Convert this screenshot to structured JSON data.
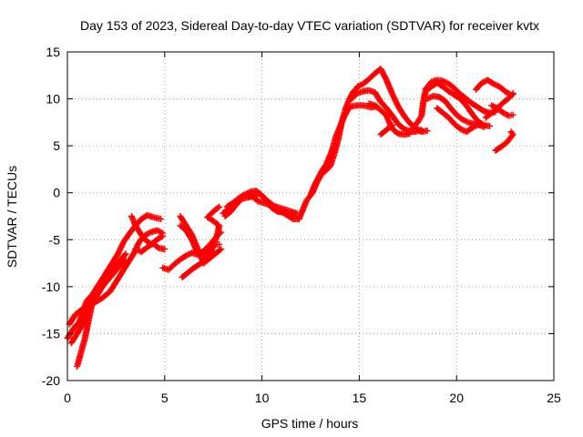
{
  "chart_data": {
    "type": "scatter",
    "title": "Day 153 of 2023, Sidereal Day-to-day VTEC variation (SDTVAR) for receiver kvtx",
    "xlabel": "GPS time / hours",
    "ylabel": "SDTVAR / TECUs",
    "xlim": [
      0,
      25
    ],
    "ylim": [
      -20,
      15
    ],
    "xticks": [
      0,
      5,
      10,
      15,
      20,
      25
    ],
    "yticks": [
      -20,
      -15,
      -10,
      -5,
      0,
      5,
      10,
      15
    ],
    "grid": true,
    "marker": "plus",
    "color": "#ff0000",
    "series": [
      {
        "values": [
          [
            0.0,
            -15.5
          ],
          [
            0.3,
            -14.5
          ],
          [
            0.6,
            -13.8
          ],
          [
            1.0,
            -11.5
          ],
          [
            1.3,
            -10.8
          ],
          [
            1.6,
            -9.8
          ],
          [
            2.0,
            -8.5
          ],
          [
            2.3,
            -7.5
          ],
          [
            2.6,
            -6.5
          ],
          [
            2.9,
            -5.2
          ],
          [
            3.2,
            -4.3
          ],
          [
            3.5,
            -3.5
          ],
          [
            3.8,
            -2.8
          ],
          [
            4.1,
            -2.4
          ],
          [
            4.4,
            -2.6
          ],
          [
            4.8,
            -2.8
          ]
        ]
      },
      {
        "values": [
          [
            0.1,
            -14.0
          ],
          [
            0.4,
            -13.0
          ],
          [
            0.7,
            -12.5
          ],
          [
            1.0,
            -12.0
          ],
          [
            1.4,
            -11.7
          ],
          [
            1.8,
            -11.2
          ],
          [
            2.2,
            -10.5
          ],
          [
            2.5,
            -9.5
          ],
          [
            2.8,
            -8.5
          ],
          [
            3.1,
            -7.5
          ],
          [
            3.4,
            -6.5
          ],
          [
            3.7,
            -5.2
          ],
          [
            4.0,
            -4.5
          ],
          [
            4.3,
            -4.2
          ],
          [
            4.6,
            -4.0
          ],
          [
            4.9,
            -4.3
          ]
        ]
      },
      {
        "values": [
          [
            0.5,
            -18.5
          ],
          [
            0.7,
            -17.0
          ],
          [
            0.9,
            -15.5
          ],
          [
            1.1,
            -13.5
          ],
          [
            1.3,
            -11.5
          ],
          [
            1.6,
            -10.5
          ],
          [
            2.0,
            -9.5
          ],
          [
            2.4,
            -8.5
          ],
          [
            2.7,
            -7.8
          ],
          [
            3.0,
            -7.2
          ]
        ]
      },
      {
        "values": [
          [
            0.2,
            -16.0
          ],
          [
            0.5,
            -15.0
          ],
          [
            0.8,
            -14.0
          ],
          [
            1.0,
            -13.0
          ],
          [
            1.2,
            -12.0
          ],
          [
            1.5,
            -11.0
          ],
          [
            1.8,
            -10.0
          ],
          [
            2.1,
            -9.0
          ],
          [
            2.4,
            -8.0
          ],
          [
            2.7,
            -7.2
          ],
          [
            3.0,
            -6.5
          ]
        ]
      },
      {
        "values": [
          [
            3.3,
            -2.5
          ],
          [
            3.5,
            -3.5
          ],
          [
            3.8,
            -4.5
          ],
          [
            4.0,
            -5.0
          ],
          [
            4.3,
            -5.5
          ],
          [
            4.6,
            -5.0
          ],
          [
            4.9,
            -4.6
          ]
        ]
      },
      {
        "values": [
          [
            3.5,
            -6.0
          ],
          [
            3.8,
            -6.3
          ],
          [
            4.1,
            -5.8
          ],
          [
            4.4,
            -5.4
          ],
          [
            4.7,
            -5.9
          ],
          [
            5.0,
            -6.0
          ]
        ]
      },
      {
        "values": [
          [
            4.9,
            -8.0
          ],
          [
            5.2,
            -8.2
          ],
          [
            5.5,
            -7.6
          ],
          [
            5.8,
            -7.1
          ],
          [
            6.1,
            -6.7
          ],
          [
            6.4,
            -6.4
          ],
          [
            6.7,
            -6.6
          ],
          [
            7.0,
            -6.2
          ],
          [
            7.3,
            -5.6
          ],
          [
            7.7,
            -4.6
          ],
          [
            7.9,
            -4.2
          ]
        ]
      },
      {
        "values": [
          [
            5.8,
            -2.5
          ],
          [
            6.1,
            -3.5
          ],
          [
            6.4,
            -4.5
          ],
          [
            6.7,
            -6.0
          ],
          [
            7.0,
            -7.5
          ],
          [
            7.3,
            -7.0
          ],
          [
            7.6,
            -6.5
          ],
          [
            7.9,
            -6.0
          ]
        ]
      },
      {
        "values": [
          [
            5.8,
            -3.5
          ],
          [
            6.1,
            -4.0
          ],
          [
            6.4,
            -5.0
          ],
          [
            6.7,
            -6.5
          ],
          [
            7.0,
            -7.0
          ],
          [
            7.3,
            -6.0
          ],
          [
            7.6,
            -5.5
          ],
          [
            7.8,
            -5.5
          ]
        ]
      },
      {
        "values": [
          [
            5.9,
            -9.0
          ],
          [
            6.2,
            -8.5
          ],
          [
            6.5,
            -8.0
          ],
          [
            6.8,
            -7.6
          ],
          [
            7.1,
            -7.2
          ],
          [
            7.4,
            -6.2
          ],
          [
            7.7,
            -4.5
          ],
          [
            7.8,
            -3.5
          ],
          [
            7.5,
            -3.0
          ],
          [
            7.2,
            -2.6
          ],
          [
            7.5,
            -2.0
          ],
          [
            7.8,
            -1.5
          ]
        ]
      },
      {
        "values": [
          [
            8.1,
            -2.5
          ],
          [
            8.4,
            -2.0
          ],
          [
            8.7,
            -1.2
          ],
          [
            9.0,
            -0.6
          ],
          [
            9.3,
            -0.5
          ],
          [
            9.6,
            -0.3
          ],
          [
            9.9,
            -0.1
          ],
          [
            10.2,
            -0.8
          ],
          [
            10.5,
            -1.6
          ],
          [
            10.8,
            -2.0
          ],
          [
            11.1,
            -2.1
          ],
          [
            11.4,
            -2.3
          ],
          [
            11.7,
            -2.5
          ]
        ]
      },
      {
        "values": [
          [
            8.2,
            -1.5
          ],
          [
            8.5,
            -1.1
          ],
          [
            8.8,
            -0.6
          ],
          [
            9.1,
            -0.2
          ],
          [
            9.4,
            0.1
          ],
          [
            9.7,
            0.2
          ],
          [
            10.0,
            -0.3
          ],
          [
            10.3,
            -0.9
          ],
          [
            10.6,
            -1.4
          ],
          [
            10.9,
            -1.6
          ],
          [
            11.2,
            -1.8
          ],
          [
            11.5,
            -2.0
          ],
          [
            11.8,
            -2.2
          ]
        ]
      },
      {
        "values": [
          [
            8.0,
            -2.2
          ],
          [
            8.3,
            -1.6
          ],
          [
            8.6,
            -1.0
          ],
          [
            8.9,
            -0.5
          ],
          [
            9.2,
            -0.3
          ],
          [
            9.5,
            -0.4
          ],
          [
            9.8,
            -0.9
          ],
          [
            10.1,
            -1.1
          ],
          [
            10.4,
            -1.3
          ],
          [
            10.7,
            -1.6
          ],
          [
            11.0,
            -2.0
          ],
          [
            11.3,
            -2.4
          ],
          [
            11.6,
            -2.8
          ],
          [
            11.9,
            -2.8
          ]
        ]
      },
      {
        "values": [
          [
            11.9,
            -2.8
          ],
          [
            12.1,
            -1.8
          ],
          [
            12.3,
            -0.8
          ],
          [
            12.6,
            0.0
          ],
          [
            12.8,
            1.0
          ],
          [
            13.0,
            1.8
          ],
          [
            13.2,
            2.2
          ],
          [
            13.5,
            2.8
          ],
          [
            13.7,
            4.0
          ],
          [
            13.9,
            5.5
          ],
          [
            14.1,
            7.5
          ],
          [
            14.3,
            9.0
          ],
          [
            14.5,
            10.0
          ],
          [
            14.7,
            10.8
          ],
          [
            14.9,
            11.2
          ]
        ]
      },
      {
        "values": [
          [
            12.5,
            -0.2
          ],
          [
            12.7,
            0.8
          ],
          [
            12.9,
            1.6
          ],
          [
            13.1,
            2.4
          ],
          [
            13.3,
            3.0
          ],
          [
            13.6,
            4.5
          ],
          [
            13.8,
            6.0
          ],
          [
            14.0,
            7.0
          ],
          [
            14.2,
            8.0
          ],
          [
            14.4,
            8.8
          ],
          [
            14.6,
            9.2
          ],
          [
            14.9,
            9.3
          ],
          [
            15.2,
            9.3
          ],
          [
            15.6,
            9.1
          ],
          [
            15.9,
            9.2
          ]
        ]
      },
      {
        "values": [
          [
            14.9,
            11.3
          ],
          [
            15.2,
            11.6
          ],
          [
            15.5,
            12.1
          ],
          [
            15.8,
            12.7
          ],
          [
            16.1,
            13.2
          ],
          [
            16.4,
            12.0
          ],
          [
            16.7,
            10.5
          ],
          [
            17.0,
            9.2
          ],
          [
            17.3,
            8.2
          ],
          [
            17.6,
            7.4
          ],
          [
            17.9,
            6.9
          ],
          [
            18.2,
            6.5
          ],
          [
            18.5,
            6.6
          ]
        ]
      },
      {
        "values": [
          [
            14.6,
            10.0
          ],
          [
            14.9,
            10.6
          ],
          [
            15.2,
            10.8
          ],
          [
            15.5,
            10.9
          ],
          [
            15.8,
            10.7
          ],
          [
            16.1,
            9.7
          ],
          [
            16.4,
            9.0
          ],
          [
            16.7,
            8.2
          ],
          [
            17.0,
            7.3
          ],
          [
            17.3,
            6.8
          ],
          [
            17.6,
            6.5
          ],
          [
            17.9,
            6.5
          ],
          [
            18.2,
            6.7
          ]
        ]
      },
      {
        "values": [
          [
            15.5,
            9.5
          ],
          [
            15.8,
            9.3
          ],
          [
            16.1,
            8.8
          ],
          [
            16.4,
            8.2
          ],
          [
            16.6,
            7.2
          ],
          [
            16.8,
            6.6
          ],
          [
            17.0,
            6.3
          ],
          [
            17.3,
            6.2
          ],
          [
            17.6,
            6.3
          ]
        ]
      },
      {
        "values": [
          [
            16.1,
            6.2
          ],
          [
            16.4,
            6.7
          ],
          [
            16.7,
            7.2
          ]
        ]
      },
      {
        "values": [
          [
            17.7,
            6.8
          ],
          [
            18.0,
            7.5
          ],
          [
            18.2,
            8.2
          ],
          [
            18.3,
            9.8
          ],
          [
            18.4,
            10.8
          ],
          [
            18.7,
            11.3
          ],
          [
            19.0,
            11.7
          ],
          [
            19.3,
            11.3
          ],
          [
            19.6,
            10.8
          ],
          [
            19.9,
            10.4
          ],
          [
            20.2,
            10.0
          ],
          [
            20.5,
            9.3
          ],
          [
            20.8,
            8.4
          ],
          [
            21.1,
            7.6
          ],
          [
            21.4,
            7.2
          ],
          [
            21.7,
            7.1
          ]
        ]
      },
      {
        "values": [
          [
            18.4,
            11.0
          ],
          [
            18.7,
            11.8
          ],
          [
            19.0,
            12.0
          ],
          [
            19.3,
            11.9
          ],
          [
            19.6,
            11.6
          ],
          [
            19.9,
            11.1
          ],
          [
            20.2,
            10.5
          ],
          [
            20.5,
            10.0
          ],
          [
            20.8,
            9.5
          ],
          [
            21.1,
            9.1
          ],
          [
            21.4,
            8.7
          ],
          [
            21.7,
            8.5
          ],
          [
            22.0,
            8.6
          ]
        ]
      },
      {
        "values": [
          [
            18.5,
            10.0
          ],
          [
            18.8,
            10.3
          ],
          [
            19.1,
            10.2
          ],
          [
            19.4,
            9.8
          ],
          [
            19.7,
            9.0
          ],
          [
            20.0,
            8.3
          ],
          [
            20.3,
            7.8
          ],
          [
            20.6,
            7.5
          ],
          [
            20.9,
            7.3
          ],
          [
            21.2,
            7.2
          ]
        ]
      },
      {
        "values": [
          [
            19.0,
            9.0
          ],
          [
            19.3,
            8.5
          ],
          [
            19.6,
            8.0
          ],
          [
            19.9,
            7.3
          ],
          [
            20.2,
            6.8
          ],
          [
            20.5,
            6.5
          ],
          [
            20.8,
            6.9
          ],
          [
            21.1,
            7.3
          ],
          [
            21.4,
            7.0
          ]
        ]
      },
      {
        "values": [
          [
            21.0,
            11.0
          ],
          [
            21.3,
            11.7
          ],
          [
            21.6,
            12.0
          ],
          [
            21.9,
            11.6
          ],
          [
            22.2,
            11.3
          ],
          [
            22.5,
            10.8
          ],
          [
            22.8,
            10.4
          ],
          [
            22.9,
            10.6
          ]
        ]
      },
      {
        "values": [
          [
            21.5,
            8.0
          ],
          [
            21.8,
            8.5
          ],
          [
            22.1,
            9.0
          ],
          [
            22.4,
            9.6
          ],
          [
            22.7,
            10.1
          ],
          [
            22.9,
            10.5
          ]
        ]
      },
      {
        "values": [
          [
            21.8,
            9.3
          ],
          [
            22.1,
            9.0
          ],
          [
            22.4,
            8.5
          ],
          [
            22.7,
            8.2
          ],
          [
            22.9,
            8.3
          ]
        ]
      },
      {
        "values": [
          [
            22.0,
            4.5
          ],
          [
            22.3,
            4.9
          ],
          [
            22.6,
            5.4
          ],
          [
            22.9,
            6.2
          ],
          [
            22.8,
            6.5
          ]
        ]
      }
    ]
  }
}
